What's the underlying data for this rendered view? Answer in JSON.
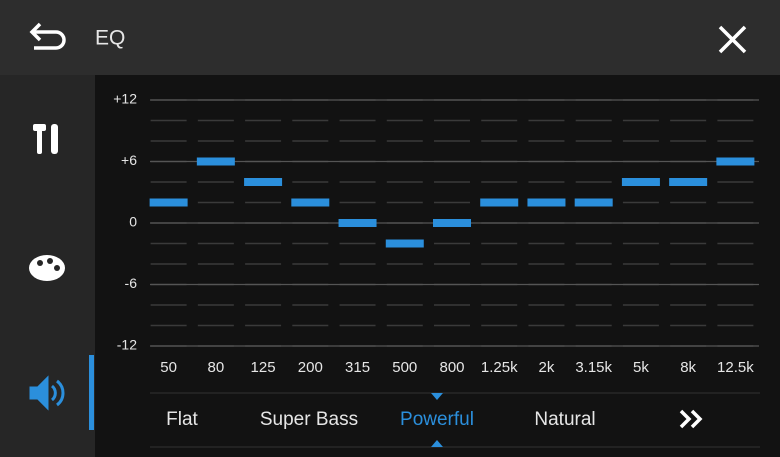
{
  "header": {
    "title": "EQ"
  },
  "chart_data": {
    "type": "bar",
    "style": "level-markers",
    "categories": [
      "50",
      "80",
      "125",
      "200",
      "315",
      "500",
      "800",
      "1.25k",
      "2k",
      "3.15k",
      "5k",
      "8k",
      "12.5k"
    ],
    "values": [
      2,
      6,
      4,
      2,
      0,
      -2,
      0,
      2,
      2,
      2,
      4,
      4,
      6
    ],
    "color": "#2b8fdc",
    "ylim": [
      -12,
      12
    ],
    "yticks": [
      {
        "value": 12,
        "label": "+12"
      },
      {
        "value": 6,
        "label": "+6"
      },
      0,
      -6,
      -12
    ],
    "grid": true,
    "minor_grid": 2
  },
  "presets": {
    "items": [
      "Flat",
      "Super Bass",
      "Powerful",
      "Natural"
    ],
    "selected": 2
  }
}
